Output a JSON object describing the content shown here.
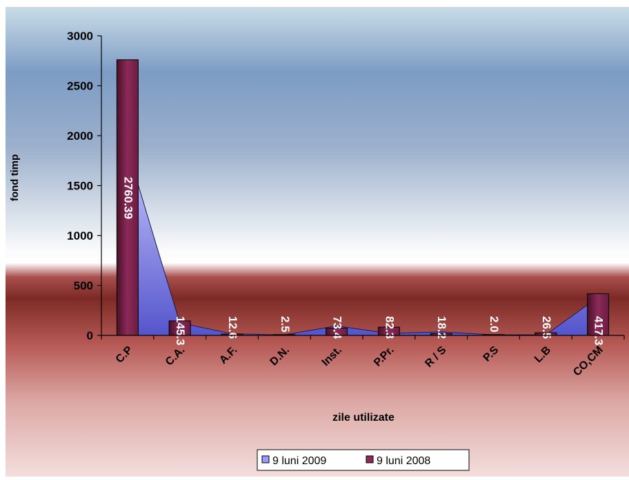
{
  "chart_data": {
    "type": "bar",
    "title": "",
    "xlabel": "zile utilizate",
    "ylabel": "fond timp",
    "ylim": [
      0,
      3000
    ],
    "yticks": [
      "0",
      "500",
      "1000",
      "1500",
      "2000",
      "2500",
      "3000"
    ],
    "grid": false,
    "legend_placement": "bottom-center",
    "categories": [
      "C.P",
      "C.A.",
      "A.F.",
      "D.N.",
      "Inst.",
      "P.Pr.",
      "R / S",
      "P.S",
      "L.B",
      "CO,CM"
    ],
    "series": [
      {
        "name": "9 luni 2009",
        "render": "area",
        "color": "#9999ff",
        "values": [
          1860,
          125,
          16,
          5,
          95,
          20,
          35,
          5,
          6,
          380
        ]
      },
      {
        "name": "9 luni 2008",
        "render": "bar",
        "color": "#7a2150",
        "values": [
          2760.39,
          145.3,
          12.6,
          2.5,
          73.4,
          82.3,
          18.2,
          2.0,
          26.5,
          417.3
        ],
        "labels": [
          "2760.39",
          "145.3",
          "12.6",
          "2.5",
          "73.4",
          "82.3",
          "18.2",
          "2.0",
          "26.5",
          "417.3"
        ]
      }
    ]
  }
}
